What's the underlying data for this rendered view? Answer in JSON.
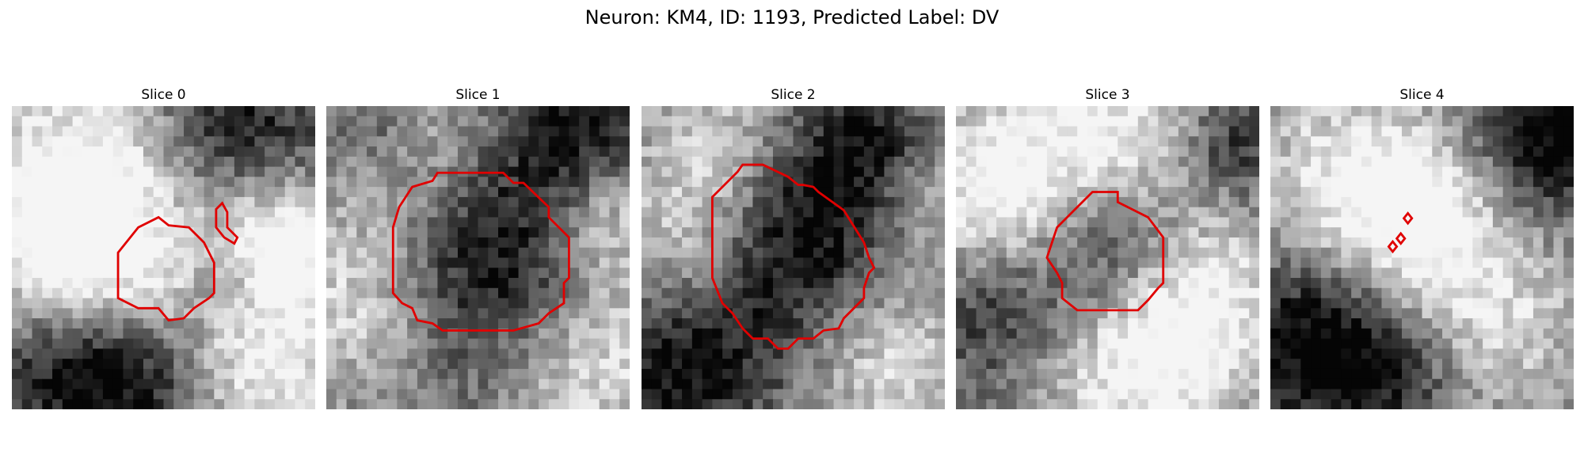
{
  "figure": {
    "title": "Neuron: KM4, ID: 1193, Predicted Label: DV"
  },
  "panels": [
    {
      "label": "Slice 0"
    },
    {
      "label": "Slice 1"
    },
    {
      "label": "Slice 2"
    },
    {
      "label": "Slice 3"
    },
    {
      "label": "Slice 4"
    }
  ],
  "colors": {
    "contour": "#e00000",
    "background": "#ffffff"
  }
}
